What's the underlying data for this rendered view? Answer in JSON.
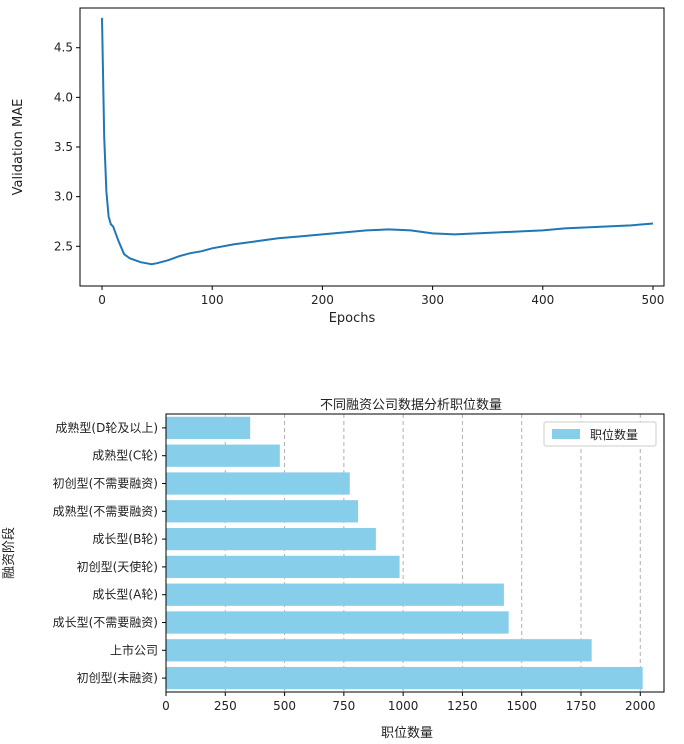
{
  "chart_data": [
    {
      "type": "line",
      "xlabel": "Epochs",
      "ylabel": "Validation MAE",
      "xlim": [
        -20,
        510
      ],
      "ylim": [
        2.1,
        4.9
      ],
      "xticks": [
        "0",
        "100",
        "200",
        "300",
        "400",
        "500"
      ],
      "yticks": [
        "2.5",
        "3.0",
        "3.5",
        "4.0",
        "4.5"
      ],
      "grid": false,
      "color": "#1f77b4",
      "series": [
        {
          "x": [
            0,
            2,
            4,
            6,
            8,
            10,
            15,
            20,
            25,
            30,
            35,
            40,
            45,
            50,
            60,
            70,
            80,
            90,
            100,
            120,
            140,
            160,
            180,
            200,
            220,
            240,
            260,
            280,
            300,
            320,
            340,
            360,
            380,
            400,
            420,
            440,
            460,
            480,
            500
          ],
          "y": [
            4.8,
            3.6,
            3.05,
            2.8,
            2.72,
            2.7,
            2.55,
            2.42,
            2.38,
            2.36,
            2.34,
            2.33,
            2.32,
            2.33,
            2.36,
            2.4,
            2.43,
            2.45,
            2.48,
            2.52,
            2.55,
            2.58,
            2.6,
            2.62,
            2.64,
            2.66,
            2.67,
            2.66,
            2.63,
            2.62,
            2.63,
            2.64,
            2.65,
            2.66,
            2.68,
            2.69,
            2.7,
            2.71,
            2.73
          ]
        }
      ]
    },
    {
      "type": "bar",
      "orientation": "horizontal",
      "title": "不同融资公司数据分析职位数量",
      "xlabel": "职位数量",
      "ylabel": "融资阶段",
      "xlim": [
        0,
        2100
      ],
      "xticks": [
        "0",
        "250",
        "500",
        "750",
        "1000",
        "1250",
        "1500",
        "1750",
        "2000"
      ],
      "grid": "x-dashed",
      "legend": "top-right",
      "color": "#87ceeb",
      "categories": [
        "初创型(未融资)",
        "上市公司",
        "成长型(不需要融资)",
        "成长型(A轮)",
        "初创型(天使轮)",
        "成长型(B轮)",
        "成熟型(不需要融资)",
        "初创型(不需要融资)",
        "成熟型(C轮)",
        "成熟型(D轮及以上)"
      ],
      "series": [
        {
          "name": "职位数量",
          "values": [
            2010,
            1795,
            1445,
            1425,
            985,
            885,
            810,
            775,
            480,
            355
          ]
        }
      ]
    }
  ]
}
